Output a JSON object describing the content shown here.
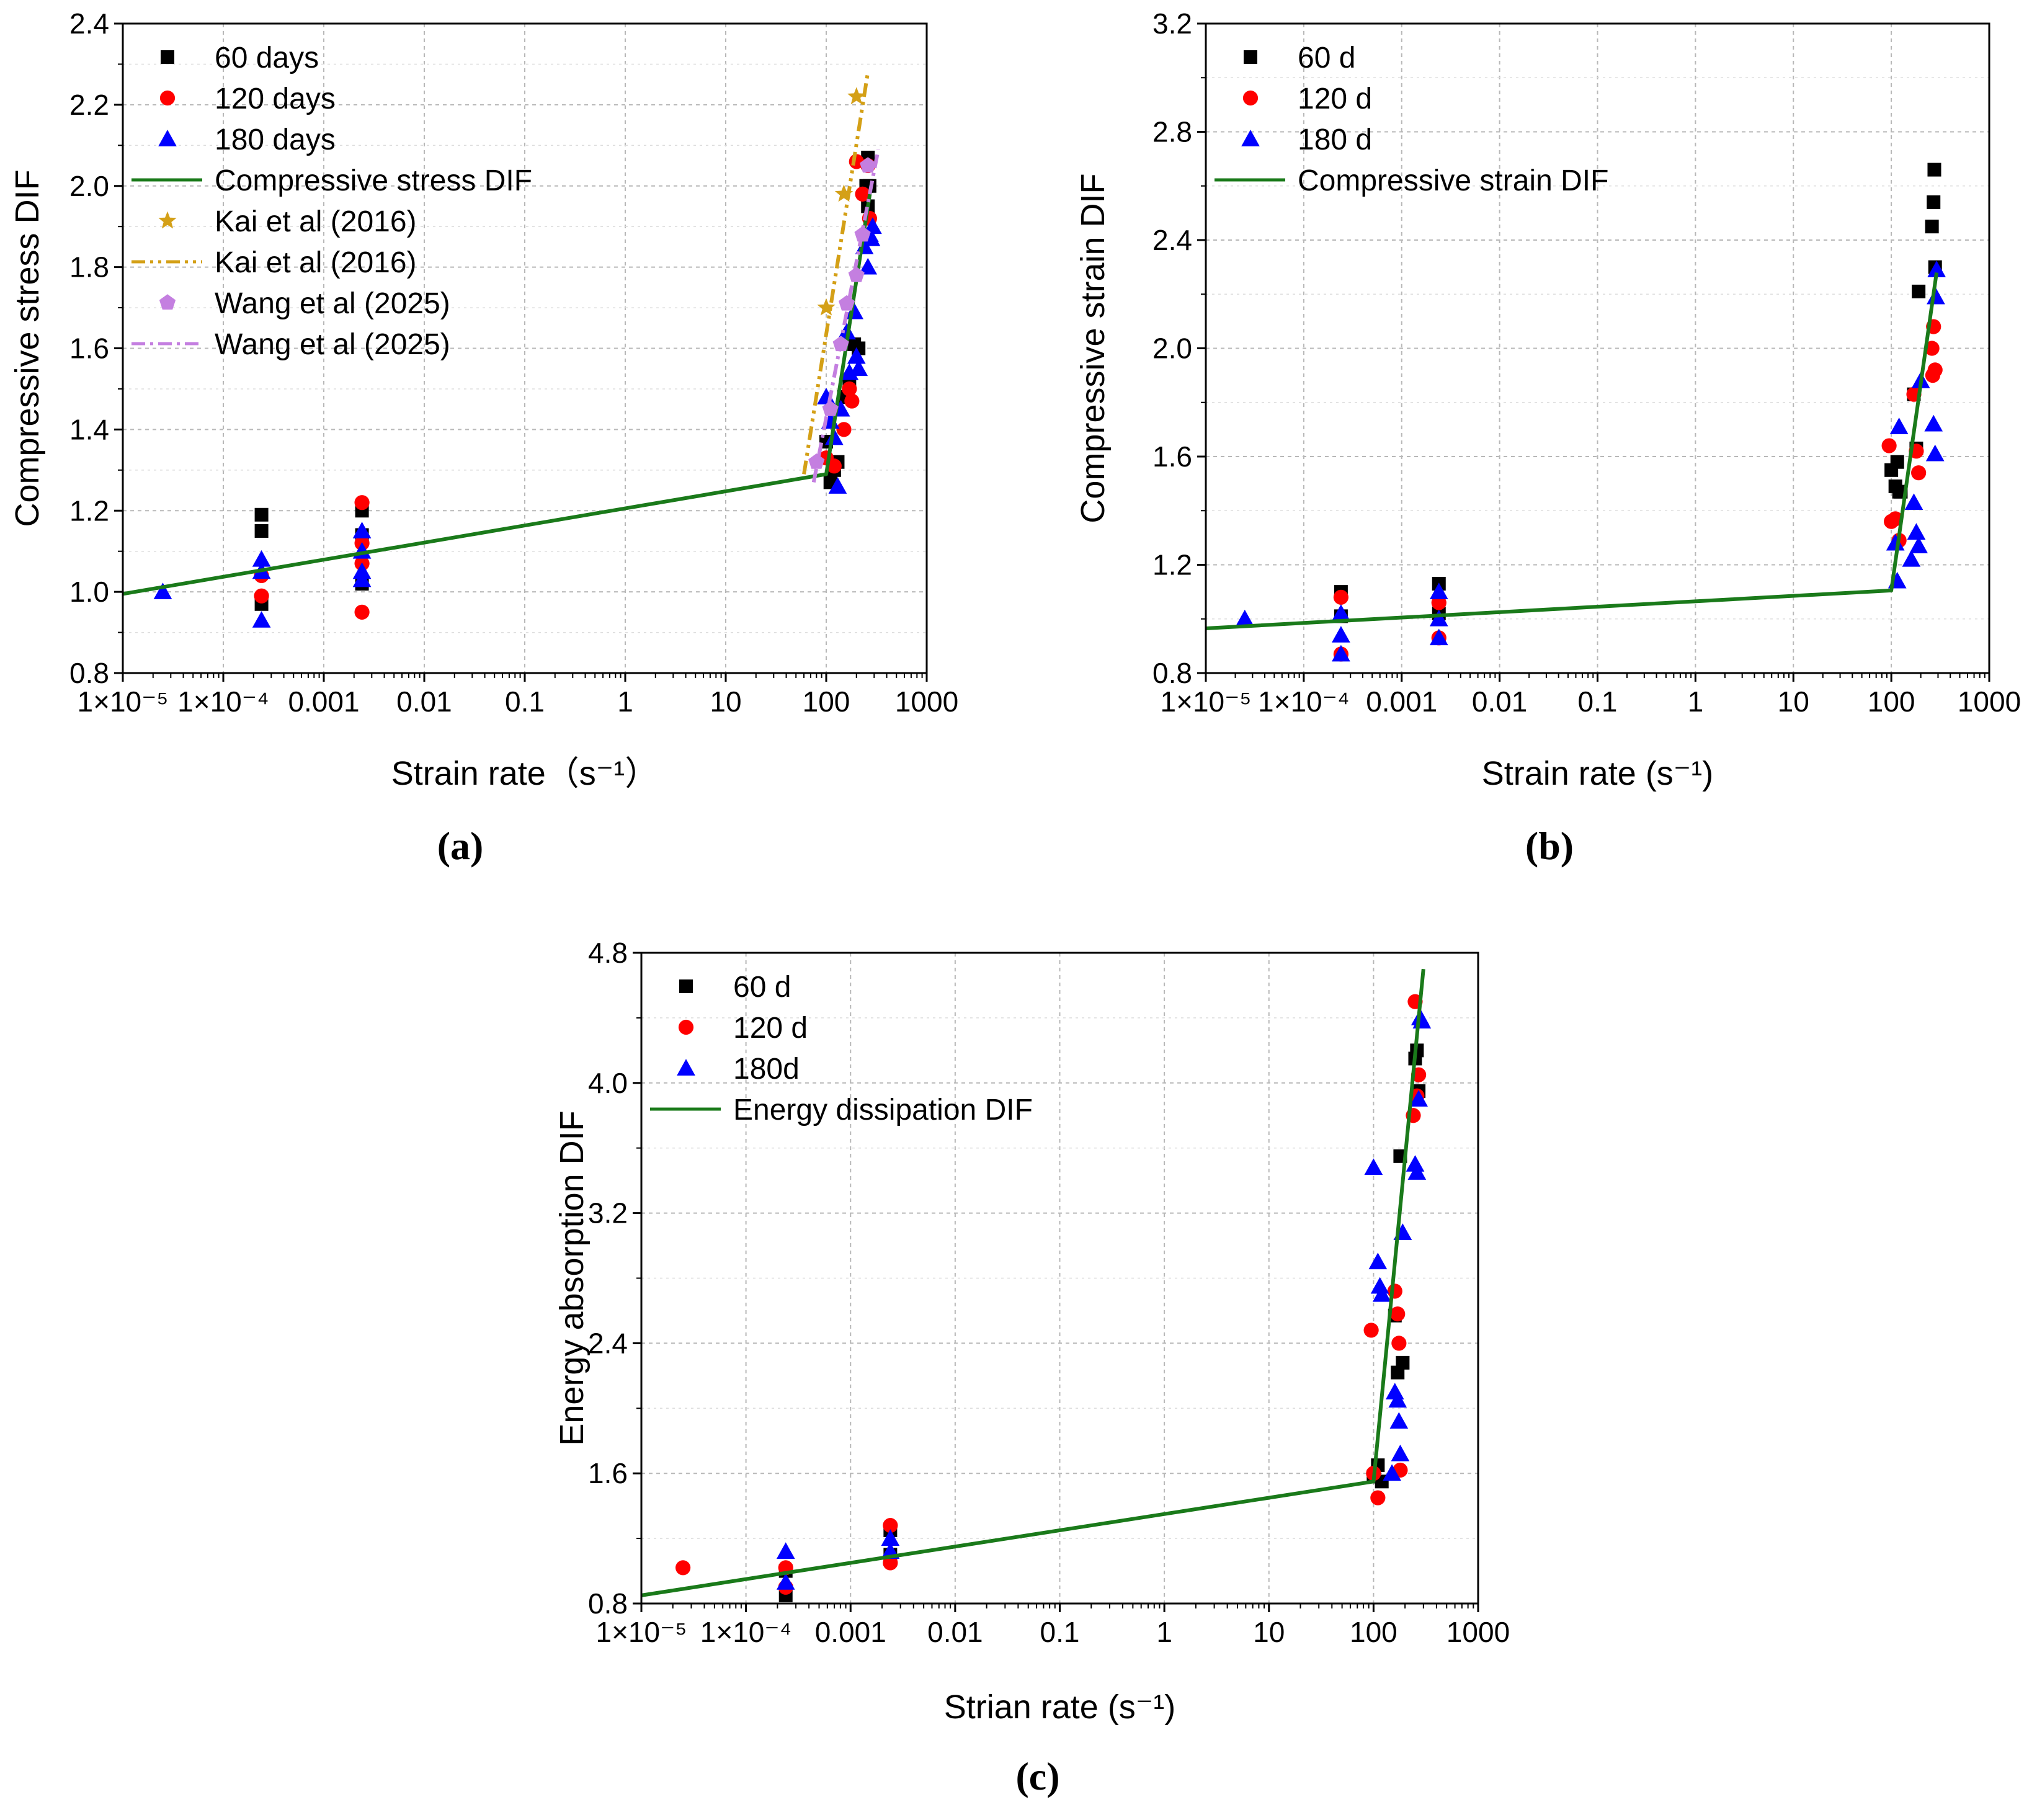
{
  "colors": {
    "black": "#000000",
    "red": "#ff0000",
    "blue": "#0000ff",
    "green": "#1a7a1a",
    "gold": "#d4a017",
    "violet": "#c47fe0",
    "grid": "#b8b8b8"
  },
  "chart_data": [
    {
      "id": "a",
      "panel_label": "(a)",
      "type": "scatter",
      "xscale": "log",
      "xlim": [
        1e-05,
        1000
      ],
      "ylim": [
        0.8,
        2.4
      ],
      "ytick_values": [
        0.8,
        1.0,
        1.2,
        1.4,
        1.6,
        1.8,
        2.0,
        2.2,
        2.4
      ],
      "ytick_labels": [
        "0.8",
        "1.0",
        "1.2",
        "1.4",
        "1.6",
        "1.8",
        "2.0",
        "2.2",
        "2.4"
      ],
      "xtick_values": [
        1e-05,
        0.0001,
        0.001,
        0.01,
        0.1,
        1,
        10,
        100,
        1000
      ],
      "xtick_labels": [
        "1×10⁻⁵",
        "1×10⁻⁴",
        "0.001",
        "0.01",
        "0.1",
        "1",
        "10",
        "100",
        "1000"
      ],
      "ylabel": "Compressive stress DIF",
      "xlabel": "Strain rate（s⁻¹）",
      "legend_position": "top-left",
      "series": [
        {
          "name": "60 days",
          "marker": "square",
          "color": "#000000",
          "legend": "60 days",
          "x": [
            0.00024,
            0.00024,
            0.00024,
            0.0024,
            0.0024,
            0.0024,
            100,
            110,
            120,
            130,
            150,
            170,
            190,
            210,
            250,
            260,
            270,
            260
          ],
          "y": [
            1.19,
            1.15,
            0.97,
            1.2,
            1.02,
            1.14,
            1.37,
            1.27,
            1.3,
            1.32,
            1.48,
            1.51,
            1.61,
            1.6,
            2.0,
            2.07,
            2.0,
            1.95
          ]
        },
        {
          "name": "120 days",
          "marker": "circle",
          "color": "#ff0000",
          "legend": "120 days",
          "x": [
            0.00024,
            0.00024,
            0.0024,
            0.0024,
            0.0024,
            0.0024,
            100,
            120,
            150,
            170,
            180,
            200,
            230,
            250,
            260,
            270
          ],
          "y": [
            0.99,
            1.04,
            1.22,
            1.12,
            1.07,
            0.95,
            1.33,
            1.31,
            1.4,
            1.5,
            1.47,
            2.06,
            1.98,
            1.87,
            2.05,
            1.92
          ]
        },
        {
          "name": "180 days",
          "marker": "triangle",
          "color": "#0000ff",
          "legend": "180 days",
          "x": [
            2.5e-05,
            0.00024,
            0.00024,
            0.00024,
            0.0024,
            0.0024,
            0.0024,
            0.0024,
            100,
            110,
            120,
            130,
            140,
            160,
            170,
            190,
            200,
            210,
            240,
            260,
            270,
            280,
            290
          ],
          "y": [
            1.0,
            1.08,
            1.05,
            0.93,
            1.15,
            1.1,
            1.05,
            1.03,
            1.48,
            1.42,
            1.38,
            1.26,
            1.45,
            1.64,
            1.54,
            1.69,
            1.58,
            1.55,
            1.85,
            1.8,
            1.88,
            1.87,
            1.9
          ]
        },
        {
          "name": "Compressive stress DIF",
          "style": "line",
          "color": "#1a7a1a",
          "legend": "Compressive stress DIF",
          "x": [
            1e-05,
            100,
            280
          ],
          "y": [
            0.995,
            1.29,
            2.0
          ]
        },
        {
          "name": "Kai et al (2016) points",
          "marker": "star",
          "color": "#d4a017",
          "legend": "Kai et al (2016)",
          "x": [
            100,
            150,
            200
          ],
          "y": [
            1.7,
            1.98,
            2.22
          ]
        },
        {
          "name": "Kai et al (2016) fit",
          "style": "dashdotdot",
          "color": "#d4a017",
          "legend": "Kai et al (2016)",
          "x": [
            60,
            260
          ],
          "y": [
            1.29,
            2.28
          ]
        },
        {
          "name": "Wang et al (2025) points",
          "marker": "pentagon",
          "color": "#c47fe0",
          "legend": "Wang et al (2025)",
          "x": [
            80,
            110,
            140,
            160,
            200,
            230,
            260
          ],
          "y": [
            1.32,
            1.45,
            1.61,
            1.71,
            1.78,
            1.88,
            2.05
          ]
        },
        {
          "name": "Wang et al (2025) fit",
          "style": "dashdot",
          "color": "#c47fe0",
          "legend": "Wang et al (2025)",
          "x": [
            75,
            330
          ],
          "y": [
            1.27,
            2.09
          ]
        }
      ]
    },
    {
      "id": "b",
      "panel_label": "(b)",
      "type": "scatter",
      "xscale": "log",
      "xlim": [
        1e-05,
        1000
      ],
      "ylim": [
        0.8,
        3.2
      ],
      "ytick_values": [
        0.8,
        1.2,
        1.6,
        2.0,
        2.4,
        2.8,
        3.2
      ],
      "ytick_labels": [
        "0.8",
        "1.2",
        "1.6",
        "2.0",
        "2.4",
        "2.8",
        "3.2"
      ],
      "xtick_values": [
        1e-05,
        0.0001,
        0.001,
        0.01,
        0.1,
        1,
        10,
        100,
        1000
      ],
      "xtick_labels": [
        "1×10⁻⁵",
        "1×10⁻⁴",
        "0.001",
        "0.01",
        "0.1",
        "1",
        "10",
        "100",
        "1000"
      ],
      "ylabel": "Compressive strain DIF",
      "xlabel": "Strain rate (s⁻¹)",
      "legend_position": "top-left",
      "series": [
        {
          "name": "60 d",
          "marker": "square",
          "color": "#000000",
          "legend": "60 d",
          "x": [
            0.00024,
            0.00024,
            0.0024,
            0.0024,
            100,
            110,
            115,
            120,
            125,
            170,
            180,
            190,
            260,
            270,
            275,
            280
          ],
          "y": [
            1.1,
            1.01,
            1.13,
            1.02,
            1.55,
            1.49,
            1.58,
            1.47,
            1.47,
            1.83,
            1.63,
            2.21,
            2.45,
            2.54,
            2.66,
            2.3
          ]
        },
        {
          "name": "120 d",
          "marker": "circle",
          "color": "#ff0000",
          "legend": "120 d",
          "x": [
            0.00024,
            0.00024,
            0.0024,
            0.0024,
            95,
            100,
            110,
            120,
            170,
            180,
            190,
            260,
            265,
            270,
            280
          ],
          "y": [
            1.08,
            0.87,
            1.06,
            0.93,
            1.64,
            1.36,
            1.37,
            1.29,
            1.83,
            1.62,
            1.54,
            2.0,
            1.9,
            2.08,
            1.92
          ]
        },
        {
          "name": "180 d",
          "marker": "triangle",
          "color": "#0000ff",
          "legend": "180 d",
          "x": [
            2.5e-05,
            0.00024,
            0.00024,
            0.00024,
            0.0024,
            0.0024,
            0.0024,
            110,
            115,
            120,
            160,
            170,
            180,
            190,
            200,
            270,
            280,
            285,
            290
          ],
          "y": [
            1.0,
            1.02,
            0.94,
            0.87,
            1.1,
            1.0,
            0.93,
            1.28,
            1.14,
            1.71,
            1.22,
            1.43,
            1.32,
            1.27,
            1.88,
            1.72,
            1.61,
            2.19,
            2.29
          ]
        },
        {
          "name": "Compressive strain DIF",
          "style": "line",
          "color": "#1a7a1a",
          "legend": "Compressive strain DIF",
          "x": [
            1e-05,
            100,
            290
          ],
          "y": [
            0.965,
            1.105,
            2.28
          ]
        }
      ]
    },
    {
      "id": "c",
      "panel_label": "(c)",
      "type": "scatter",
      "xscale": "log",
      "xlim": [
        1e-05,
        1000
      ],
      "ylim": [
        0.8,
        4.8
      ],
      "ytick_values": [
        0.8,
        1.6,
        2.4,
        3.2,
        4.0,
        4.8
      ],
      "ytick_labels": [
        "0.8",
        "1.6",
        "2.4",
        "3.2",
        "4.0",
        "4.8"
      ],
      "xtick_values": [
        1e-05,
        0.0001,
        0.001,
        0.01,
        0.1,
        1,
        10,
        100,
        1000
      ],
      "xtick_labels": [
        "1×10⁻⁵",
        "1×10⁻⁴",
        "0.001",
        "0.01",
        "0.1",
        "1",
        "10",
        "100",
        "1000"
      ],
      "ylabel": "Energy absorption DIF",
      "xlabel": "Strian rate (s⁻¹)",
      "legend_position": "top-left",
      "series": [
        {
          "name": "60 d",
          "marker": "square",
          "color": "#000000",
          "legend": "60 d",
          "x": [
            0.00024,
            0.00024,
            0.0024,
            0.0024,
            100,
            110,
            120,
            160,
            170,
            180,
            190,
            250,
            260,
            270
          ],
          "y": [
            0.85,
            1.0,
            1.25,
            1.1,
            1.58,
            1.65,
            1.55,
            2.57,
            2.22,
            3.55,
            2.28,
            4.15,
            4.2,
            3.95
          ]
        },
        {
          "name": "120 d",
          "marker": "circle",
          "color": "#ff0000",
          "legend": "120 d",
          "x": [
            2.5e-05,
            0.00024,
            0.00024,
            0.0024,
            0.0024,
            95,
            100,
            110,
            160,
            170,
            175,
            180,
            240,
            250,
            260,
            270
          ],
          "y": [
            1.02,
            0.9,
            1.02,
            1.28,
            1.05,
            2.48,
            1.6,
            1.45,
            2.72,
            2.58,
            2.4,
            1.62,
            3.8,
            4.5,
            3.92,
            4.05
          ]
        },
        {
          "name": "180d",
          "marker": "triangle",
          "color": "#0000ff",
          "legend": "180d",
          "x": [
            0.00024,
            0.00024,
            0.0024,
            0.0024,
            100,
            110,
            115,
            120,
            150,
            160,
            170,
            175,
            180,
            190,
            250,
            260,
            270,
            280,
            290
          ],
          "y": [
            1.12,
            0.93,
            1.2,
            1.12,
            3.48,
            2.9,
            2.75,
            2.7,
            1.6,
            2.1,
            2.05,
            1.92,
            1.72,
            3.08,
            3.5,
            3.45,
            3.9,
            4.4,
            4.38
          ]
        },
        {
          "name": "Energy dissipation DIF",
          "style": "line",
          "color": "#1a7a1a",
          "legend": "Energy dissipation DIF",
          "x": [
            1e-05,
            100,
            300
          ],
          "y": [
            0.85,
            1.55,
            4.7
          ]
        }
      ]
    }
  ]
}
